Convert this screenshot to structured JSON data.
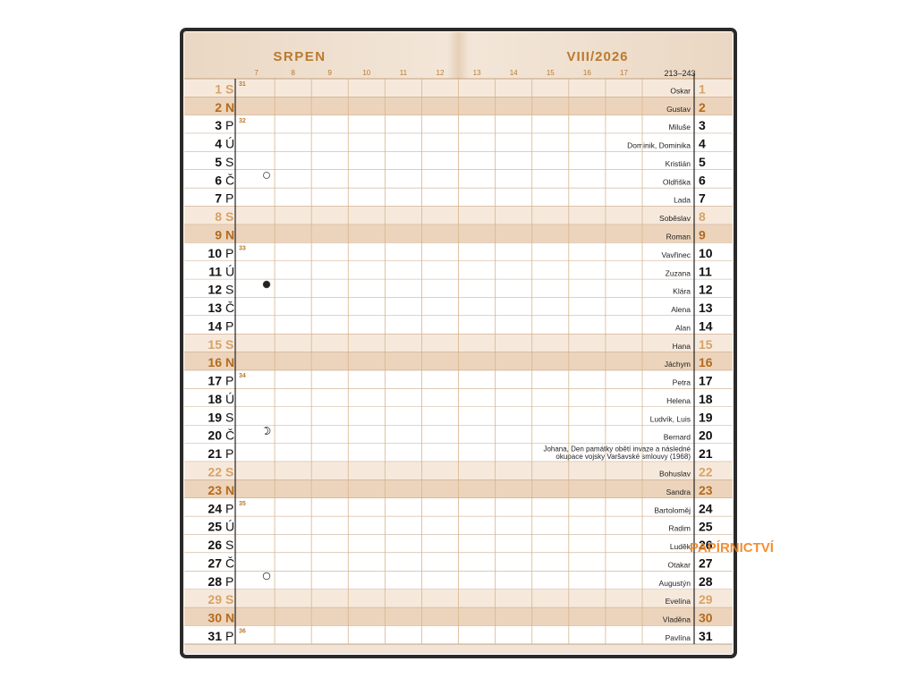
{
  "header": {
    "month": "SRPEN",
    "period": "VIII/2026",
    "day_range": "213–243"
  },
  "hours": [
    7,
    8,
    9,
    10,
    11,
    12,
    13,
    14,
    15,
    16,
    17
  ],
  "days": [
    {
      "day": 1,
      "weekday": "S",
      "name": "Oskar",
      "week": 31
    },
    {
      "day": 2,
      "weekday": "N",
      "name": "Gustav"
    },
    {
      "day": 3,
      "weekday": "P",
      "name": "Miluše",
      "week": 32
    },
    {
      "day": 4,
      "weekday": "Ú",
      "name": "Dominik, Dominika"
    },
    {
      "day": 5,
      "weekday": "S",
      "name": "Kristián"
    },
    {
      "day": 6,
      "weekday": "Č",
      "name": "Oldřiška"
    },
    {
      "day": 7,
      "weekday": "P",
      "name": "Lada"
    },
    {
      "day": 8,
      "weekday": "S",
      "name": "Soběslav"
    },
    {
      "day": 9,
      "weekday": "N",
      "name": "Roman"
    },
    {
      "day": 10,
      "weekday": "P",
      "name": "Vavřinec",
      "week": 33
    },
    {
      "day": 11,
      "weekday": "Ú",
      "name": "Zuzana"
    },
    {
      "day": 12,
      "weekday": "S",
      "name": "Klára"
    },
    {
      "day": 13,
      "weekday": "Č",
      "name": "Alena"
    },
    {
      "day": 14,
      "weekday": "P",
      "name": "Alan"
    },
    {
      "day": 15,
      "weekday": "S",
      "name": "Hana"
    },
    {
      "day": 16,
      "weekday": "N",
      "name": "Jáchym"
    },
    {
      "day": 17,
      "weekday": "P",
      "name": "Petra",
      "week": 34
    },
    {
      "day": 18,
      "weekday": "Ú",
      "name": "Helena"
    },
    {
      "day": 19,
      "weekday": "S",
      "name": "Ludvík, Luis"
    },
    {
      "day": 20,
      "weekday": "Č",
      "name": "Bernard"
    },
    {
      "day": 21,
      "weekday": "P",
      "name": [
        "Johana, Den památky obětí invaze a následné",
        "okupace vojsky Varšavské smlouvy (1968)"
      ]
    },
    {
      "day": 22,
      "weekday": "S",
      "name": "Bohuslav"
    },
    {
      "day": 23,
      "weekday": "N",
      "name": "Sandra"
    },
    {
      "day": 24,
      "weekday": "P",
      "name": "Bartoloměj",
      "week": 35
    },
    {
      "day": 25,
      "weekday": "Ú",
      "name": "Radim"
    },
    {
      "day": 26,
      "weekday": "S",
      "name": "Luděk"
    },
    {
      "day": 27,
      "weekday": "Č",
      "name": "Otakar"
    },
    {
      "day": 28,
      "weekday": "P",
      "name": "Augustýn"
    },
    {
      "day": 29,
      "weekday": "S",
      "name": "Evelína"
    },
    {
      "day": 30,
      "weekday": "N",
      "name": "Vladěna"
    },
    {
      "day": 31,
      "weekday": "P",
      "name": "Pavlína",
      "week": 36
    }
  ],
  "watermark": "PAPÍRNICTVÍ"
}
